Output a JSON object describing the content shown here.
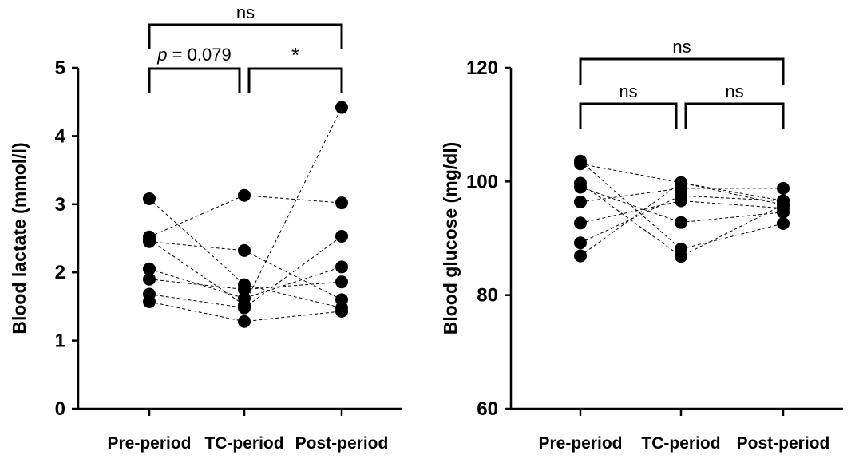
{
  "chart_data": [
    {
      "type": "scatter",
      "subtype": "paired dot plot",
      "categories": [
        "Pre-period",
        "TC-period",
        "Post-period"
      ],
      "ylabel": "Blood lactate (mmol/l)",
      "ylim": [
        0,
        5
      ],
      "yticks": [
        "0",
        "1",
        "2",
        "3",
        "4",
        "5"
      ],
      "grid": false,
      "subjects": [
        [
          2.48,
          1.52,
          4.42
        ],
        [
          3.08,
          1.82,
          1.48
        ],
        [
          2.52,
          3.13,
          3.02
        ],
        [
          2.45,
          2.32,
          1.6
        ],
        [
          2.05,
          1.62,
          2.08
        ],
        [
          1.9,
          1.75,
          1.86
        ],
        [
          1.68,
          1.48,
          2.53
        ],
        [
          1.57,
          1.28,
          1.43
        ]
      ],
      "significance": [
        {
          "from": 0,
          "to": 1,
          "label": "p = 0.079",
          "p_italic": "p",
          "p_rest": " = 0.079",
          "level": 1
        },
        {
          "from": 1,
          "to": 2,
          "label": "*",
          "level": 1
        },
        {
          "from": 0,
          "to": 2,
          "label": "ns",
          "level": 2
        }
      ]
    },
    {
      "type": "scatter",
      "subtype": "paired dot plot",
      "categories": [
        "Pre-period",
        "TC-period",
        "Post-period"
      ],
      "ylabel": "Blood glucose (mg/dl)",
      "ylim": [
        60,
        120
      ],
      "yticks": [
        "60",
        "80",
        "100",
        "120"
      ],
      "grid": false,
      "subjects": [
        [
          103.6,
          88.1,
          92.6
        ],
        [
          103.1,
          99.8,
          96.6
        ],
        [
          99.7,
          86.8,
          95.9
        ],
        [
          99.0,
          92.8,
          94.6
        ],
        [
          96.4,
          98.8,
          98.8
        ],
        [
          92.7,
          96.6,
          95.3
        ],
        [
          89.2,
          97.5,
          96.6
        ],
        [
          86.9,
          99.8,
          95.9
        ]
      ],
      "significance": [
        {
          "from": 0,
          "to": 1,
          "label": "ns",
          "level": 1
        },
        {
          "from": 1,
          "to": 2,
          "label": "ns",
          "level": 1
        },
        {
          "from": 0,
          "to": 2,
          "label": "ns",
          "level": 2
        }
      ]
    }
  ]
}
